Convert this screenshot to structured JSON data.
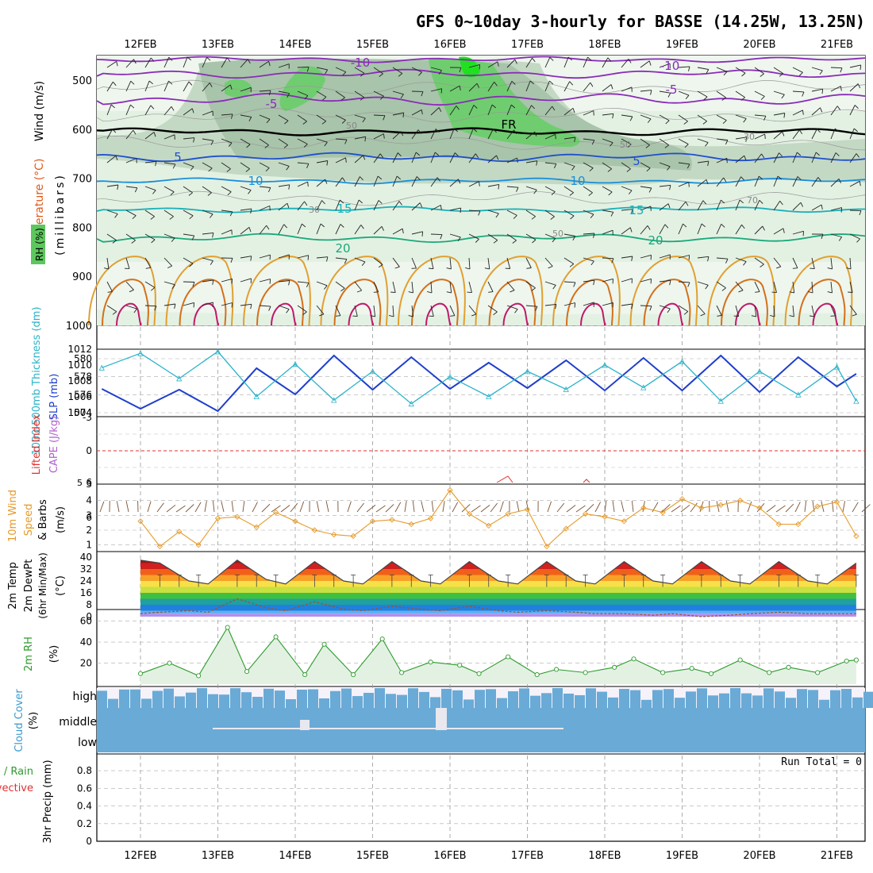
{
  "title": "GFS 0~10day 3-hourly for BASSE (14.25W, 13.25N)",
  "colors": {
    "slp": "#1f3fcc",
    "thickness": "#2ab3c9",
    "wind10m": "#e59a2a",
    "rh2m": "#2e9a2e",
    "cloud": "#6aaad6",
    "cloud_bg": "#f5f2fa",
    "rh_fill_light": "#e3f1e3",
    "rh_fill_mid": "#b8dcb8",
    "rh_fill_dark": "#62b562",
    "lifted_zero": "#e03030",
    "temp_neg10": "#8a2bb8",
    "temp_neg5": "#8a2bb8",
    "temp_5": "#1f4fcc",
    "temp_10": "#1a8fd8",
    "temp_15": "#1ab0b8",
    "temp_20": "#1aa87a",
    "temp_25": "#e0a030",
    "temp_30": "#d4701a",
    "temp_35": "#c0186a"
  },
  "dates": [
    "12FEB",
    "13FEB",
    "14FEB",
    "15FEB",
    "16FEB",
    "17FEB",
    "18FEB",
    "19FEB",
    "20FEB",
    "21FEB"
  ],
  "panels": {
    "upper": {
      "labels": {
        "wind": "Wind (m/s)",
        "temperature": "Temperature (°C)",
        "rh": "RH (%)",
        "millibars": "(millibars)"
      },
      "pressure_ticks": [
        "500",
        "600",
        "700",
        "800",
        "900",
        "1000"
      ],
      "contour_labels": {
        "neg10": "-10",
        "neg5": "-5",
        "fr": "FR",
        "p5": "5",
        "p10": "10",
        "p15": "15",
        "p20": "20",
        "rh50": "50",
        "rh30": "30",
        "rh70": "70"
      }
    },
    "thickness_slp": {
      "label_thickness": "1000-500mb Thickness (dm)",
      "label_slp": "SLP (mb)",
      "left_ticks": [
        "574",
        "576",
        "578",
        "580"
      ],
      "right_ticks": [
        "1004",
        "1006",
        "1008",
        "1010",
        "1012"
      ]
    },
    "cape": {
      "label_li": "Lifted Index",
      "label_cape": "CAPE (J/kg)",
      "ticks": [
        "-3",
        "0",
        "3",
        "6"
      ],
      "tick_minus6": "6",
      "cape_tick": "5"
    },
    "wind10m": {
      "label_a": "10m Wind",
      "label_b": "Speed",
      "label_c": "& Barbs",
      "unit": "(m/s)",
      "ticks": [
        "1",
        "2",
        "3",
        "4"
      ]
    },
    "temp2m": {
      "label_a": "2m Temp",
      "label_b": "2m DewPt",
      "label_c": "(6hr Min/Max)",
      "unit": "(°C)",
      "ticks": [
        "0",
        "8",
        "16",
        "24",
        "32",
        "40"
      ]
    },
    "rh2m": {
      "label": "2m RH",
      "unit": "(%)",
      "ticks": [
        "20",
        "40",
        "60"
      ]
    },
    "cloud": {
      "label": "Cloud Cover",
      "unit": "(%)",
      "levels": [
        "high",
        "middle",
        "low"
      ]
    },
    "precip": {
      "label_a": "Total / Rain",
      "label_b": "Convective",
      "label_c": "3hr Precip (mm)",
      "run_total": "Run Total = 0",
      "ticks": [
        "0",
        "0.2",
        "0.4",
        "0.6",
        "0.8"
      ]
    }
  },
  "chart_data": [
    {
      "type": "line",
      "name": "thickness_slp",
      "x": [
        "11FEB 12Z",
        "12FEB 00Z",
        "12FEB 12Z",
        "13FEB 00Z",
        "13FEB 12Z",
        "14FEB 00Z",
        "14FEB 12Z",
        "15FEB 00Z",
        "15FEB 12Z",
        "16FEB 00Z",
        "16FEB 12Z",
        "17FEB 00Z",
        "17FEB 12Z",
        "18FEB 00Z",
        "18FEB 12Z",
        "19FEB 00Z",
        "19FEB 12Z",
        "20FEB 00Z",
        "20FEB 12Z",
        "21FEB 00Z",
        "21FEB 06Z"
      ],
      "series": [
        {
          "name": "SLP (mb)",
          "values": [
            1007.0,
            1004.5,
            1006.9,
            1004.2,
            1009.6,
            1006.3,
            1011.2,
            1006.9,
            1011.0,
            1007.0,
            1010.3,
            1007.1,
            1010.6,
            1006.8,
            1010.9,
            1006.8,
            1011.2,
            1006.6,
            1011.0,
            1007.3,
            1008.9
          ]
        },
        {
          "name": "1000-500mb Thickness (dm)",
          "values": [
            579.0,
            580.6,
            577.8,
            580.8,
            575.8,
            579.4,
            575.4,
            578.6,
            575.0,
            578.0,
            575.8,
            578.6,
            576.6,
            579.3,
            576.8,
            579.7,
            575.3,
            578.6,
            576.0,
            579.1,
            575.3
          ]
        }
      ]
    },
    {
      "type": "line",
      "name": "wind10m_speed",
      "ylim": [
        0.5,
        5
      ],
      "x": [
        "12FEB 00Z",
        "12FEB 06Z",
        "12FEB 12Z",
        "12FEB 18Z",
        "13FEB 00Z",
        "13FEB 06Z",
        "13FEB 12Z",
        "13FEB 18Z",
        "14FEB 00Z",
        "14FEB 06Z",
        "14FEB 12Z",
        "14FEB 18Z",
        "15FEB 00Z",
        "15FEB 06Z",
        "15FEB 12Z",
        "15FEB 18Z",
        "16FEB 00Z",
        "16FEB 06Z",
        "16FEB 12Z",
        "16FEB 18Z",
        "17FEB 00Z",
        "17FEB 06Z",
        "17FEB 12Z",
        "17FEB 18Z",
        "18FEB 00Z",
        "18FEB 06Z",
        "18FEB 12Z",
        "18FEB 18Z",
        "19FEB 00Z",
        "19FEB 06Z",
        "19FEB 12Z",
        "19FEB 18Z",
        "20FEB 00Z",
        "20FEB 06Z",
        "20FEB 12Z",
        "20FEB 18Z",
        "21FEB 00Z",
        "21FEB 06Z"
      ],
      "series": [
        {
          "name": "Speed",
          "values": [
            2.6,
            0.9,
            1.9,
            1.0,
            2.8,
            2.9,
            2.2,
            3.2,
            2.6,
            2.0,
            1.7,
            1.6,
            2.6,
            2.7,
            2.4,
            2.8,
            4.7,
            3.1,
            2.3,
            3.1,
            3.4,
            0.9,
            2.1,
            3.1,
            2.9,
            2.6,
            3.5,
            3.2,
            4.1,
            3.5,
            3.7,
            4.0,
            3.5,
            2.4,
            2.4,
            3.6,
            3.9,
            1.6
          ]
        }
      ]
    },
    {
      "type": "area",
      "name": "temp2m",
      "ylim": [
        0,
        40
      ],
      "x": [
        "12FEB 00Z",
        "12FEB 06Z",
        "12FEB 15Z",
        "12FEB 21Z",
        "13FEB 06Z",
        "13FEB 15Z",
        "13FEB 21Z",
        "14FEB 06Z",
        "14FEB 15Z",
        "14FEB 21Z",
        "15FEB 06Z",
        "15FEB 15Z",
        "15FEB 21Z",
        "16FEB 06Z",
        "16FEB 15Z",
        "16FEB 21Z",
        "17FEB 06Z",
        "17FEB 15Z",
        "17FEB 21Z",
        "18FEB 06Z",
        "18FEB 15Z",
        "18FEB 21Z",
        "19FEB 06Z",
        "19FEB 15Z",
        "19FEB 21Z",
        "20FEB 06Z",
        "20FEB 15Z",
        "20FEB 21Z",
        "21FEB 06Z"
      ],
      "series": [
        {
          "name": "2m Temp",
          "values": [
            38,
            36,
            24,
            22,
            38,
            25,
            22,
            37,
            24,
            22,
            37,
            24,
            22,
            37,
            24,
            22,
            37,
            24,
            22,
            37,
            24,
            22,
            37,
            24,
            22,
            37,
            24,
            22,
            36
          ]
        },
        {
          "name": "2m DewPt",
          "values": [
            2,
            3,
            4,
            3,
            12,
            6,
            4,
            10,
            5,
            4,
            7,
            5,
            4,
            7,
            4,
            3,
            4,
            3,
            2,
            2,
            1,
            2,
            0,
            1,
            2,
            3,
            2,
            2,
            2
          ]
        }
      ]
    },
    {
      "type": "area",
      "name": "rh2m",
      "ylim": [
        0,
        65
      ],
      "x": [
        "12FEB 00Z",
        "12FEB 09Z",
        "12FEB 18Z",
        "13FEB 03Z",
        "13FEB 09Z",
        "13FEB 18Z",
        "14FEB 03Z",
        "14FEB 09Z",
        "14FEB 18Z",
        "15FEB 03Z",
        "15FEB 09Z",
        "15FEB 18Z",
        "16FEB 03Z",
        "16FEB 09Z",
        "16FEB 18Z",
        "17FEB 03Z",
        "17FEB 09Z",
        "17FEB 18Z",
        "18FEB 03Z",
        "18FEB 09Z",
        "18FEB 18Z",
        "19FEB 03Z",
        "19FEB 09Z",
        "19FEB 18Z",
        "20FEB 03Z",
        "20FEB 09Z",
        "20FEB 18Z",
        "21FEB 03Z",
        "21FEB 06Z"
      ],
      "series": [
        {
          "name": "2m RH",
          "values": [
            10,
            20,
            8,
            54,
            12,
            45,
            9,
            38,
            9,
            43,
            11,
            21,
            18,
            10,
            26,
            9,
            14,
            11,
            16,
            24,
            11,
            15,
            10,
            23,
            11,
            16,
            11,
            22,
            23
          ]
        }
      ]
    },
    {
      "type": "bar",
      "name": "precip",
      "ylim": [
        0,
        1
      ],
      "series": [
        {
          "name": "3hr Precip (mm)",
          "values": [
            0
          ]
        }
      ]
    }
  ]
}
